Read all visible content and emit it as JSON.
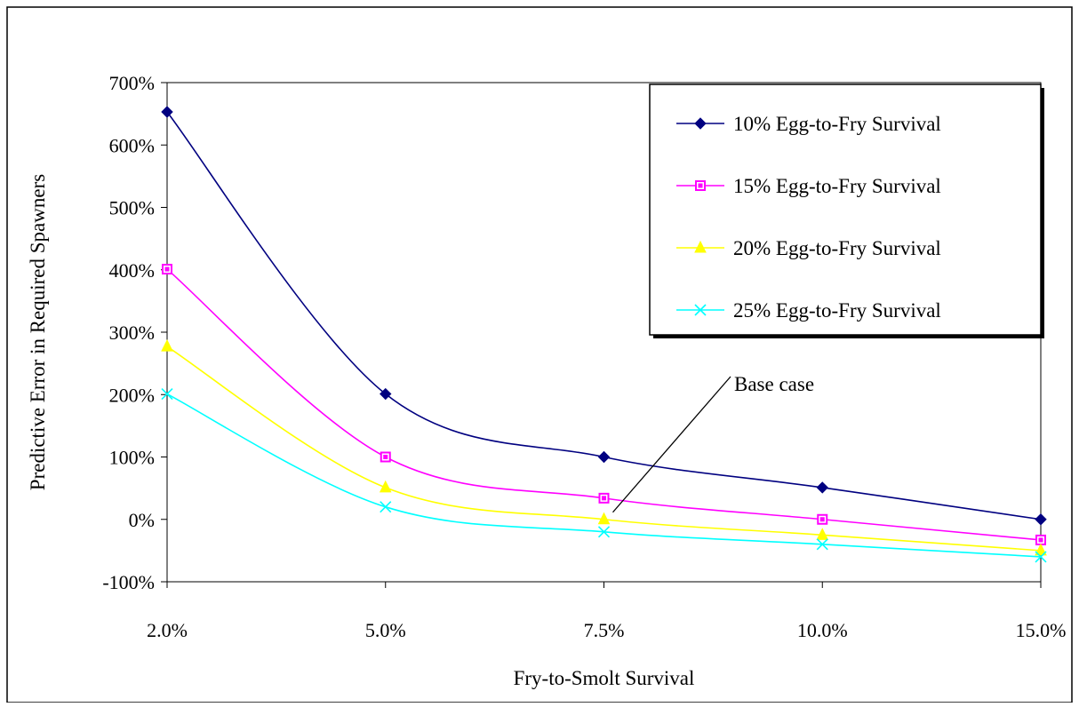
{
  "chart_data": {
    "type": "line",
    "title": "",
    "xlabel": "Fry-to-Smolt Survival",
    "ylabel": "Predictive Error in Required Spawners",
    "categories": [
      "2.0%",
      "5.0%",
      "7.5%",
      "10.0%",
      "15.0%"
    ],
    "y_ticks": [
      "-100%",
      "0%",
      "100%",
      "200%",
      "300%",
      "400%",
      "500%",
      "600%",
      "700%"
    ],
    "ylim": [
      -100,
      700
    ],
    "y_unit": "%",
    "grid": false,
    "legend_position": "top-right",
    "series": [
      {
        "name": "10% Egg-to-Fry Survival",
        "values": [
          653,
          201,
          100,
          51,
          0
        ],
        "color": "#000080",
        "marker": "diamond"
      },
      {
        "name": "15% Egg-to-Fry Survival",
        "values": [
          401,
          100,
          34,
          0,
          -33
        ],
        "color": "#FF00FF",
        "marker": "square"
      },
      {
        "name": "20% Egg-to-Fry Survival",
        "values": [
          277,
          51,
          0,
          -25,
          -50
        ],
        "color": "#FFFF00",
        "marker": "triangle"
      },
      {
        "name": "25% Egg-to-Fry Survival",
        "values": [
          201,
          20,
          -20,
          -40,
          -60
        ],
        "color": "#00FFFF",
        "marker": "x"
      }
    ],
    "annotations": [
      {
        "text": "Base case",
        "category": "7.5%",
        "series": "20% Egg-to-Fry Survival"
      }
    ]
  }
}
